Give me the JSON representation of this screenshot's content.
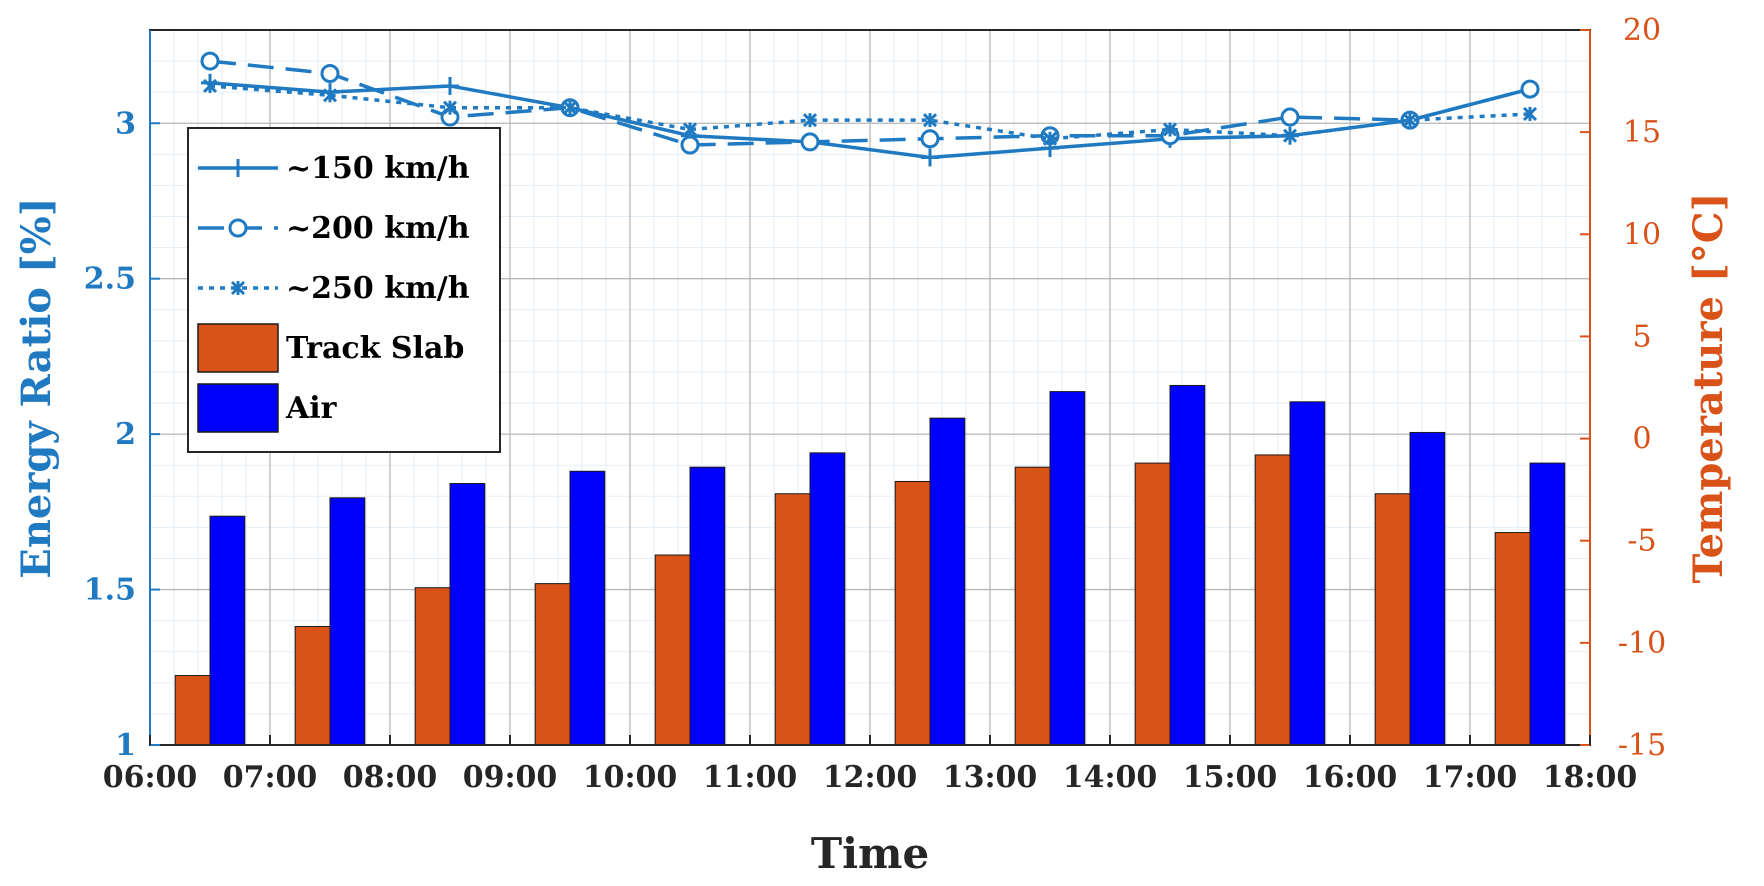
{
  "chart_data": {
    "type": "bar",
    "title": "",
    "xlabel": "Time",
    "ylabel": "Energy Ratio [%]",
    "y2label": "Temperature [°C]",
    "ylim": [
      1,
      3.3
    ],
    "y2lim": [
      -15,
      20
    ],
    "x_tick_labels": [
      "06:00",
      "07:00",
      "08:00",
      "09:00",
      "10:00",
      "11:00",
      "12:00",
      "13:00",
      "14:00",
      "15:00",
      "16:00",
      "17:00",
      "18:00"
    ],
    "y_ticks": [
      1,
      1.5,
      2,
      2.5,
      3
    ],
    "y_tick_labels": [
      "1",
      "1.5",
      "2",
      "2.5",
      "3"
    ],
    "y2_ticks": [
      -15,
      -10,
      -5,
      0,
      5,
      10,
      15,
      20
    ],
    "y2_tick_labels": [
      "-15",
      "-10",
      "-5",
      "0",
      "5",
      "10",
      "15",
      "20"
    ],
    "categories": [
      "06:30",
      "07:30",
      "08:30",
      "09:30",
      "10:30",
      "11:30",
      "12:30",
      "13:30",
      "14:30",
      "15:30",
      "16:30",
      "17:30"
    ],
    "bar_series": [
      {
        "name": "Track Slab",
        "axis": "right",
        "color": "#d95319",
        "values": [
          -11.6,
          -9.2,
          -7.3,
          -7.1,
          -5.7,
          -2.7,
          -2.1,
          -1.4,
          -1.2,
          -0.8,
          -2.7,
          -4.6
        ]
      },
      {
        "name": "Air",
        "axis": "right",
        "color": "#0000ff",
        "values": [
          -3.8,
          -2.9,
          -2.2,
          -1.6,
          -1.4,
          -0.7,
          1.0,
          2.3,
          2.6,
          1.8,
          0.3,
          -1.2
        ]
      }
    ],
    "line_series": [
      {
        "name": "~150 km/h",
        "axis": "left",
        "marker": "plus",
        "dash": "solid",
        "color": "#1f7ac2",
        "values": [
          3.13,
          3.1,
          3.12,
          3.05,
          2.96,
          2.94,
          2.89,
          2.92,
          2.95,
          2.96,
          3.01,
          3.11
        ]
      },
      {
        "name": "~200 km/h",
        "axis": "left",
        "marker": "circle",
        "dash": "dashed",
        "color": "#1f7ac2",
        "values": [
          3.2,
          3.16,
          3.02,
          3.05,
          2.93,
          2.94,
          2.95,
          2.96,
          2.96,
          3.02,
          3.01,
          3.11
        ]
      },
      {
        "name": "~250 km/h",
        "axis": "left",
        "marker": "asterisk",
        "dash": "dotted",
        "color": "#1f7ac2",
        "values": [
          3.12,
          3.09,
          3.05,
          3.05,
          2.98,
          3.01,
          3.01,
          2.95,
          2.98,
          2.96,
          3.01,
          3.03
        ]
      }
    ],
    "legend": {
      "position": "left",
      "entries": [
        "~150 km/h",
        "~200 km/h",
        "~250 km/h",
        "Track Slab",
        "Air"
      ]
    },
    "grid": true,
    "minor_grid": true
  }
}
